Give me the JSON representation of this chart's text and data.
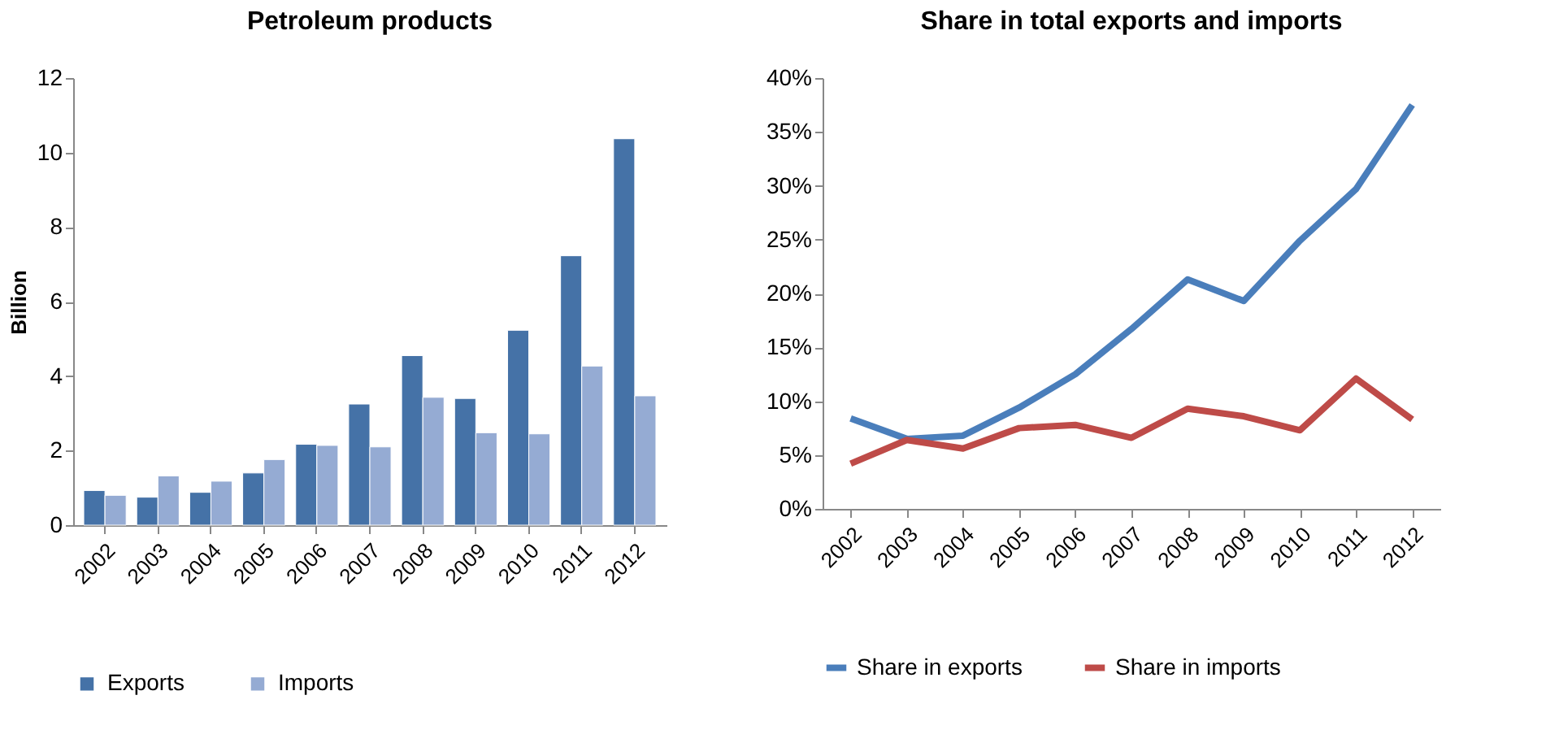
{
  "chart_data": [
    {
      "type": "bar",
      "title": "Petroleum products",
      "ylabel": "Billion",
      "categories": [
        "2002",
        "2003",
        "2004",
        "2005",
        "2006",
        "2007",
        "2008",
        "2009",
        "2010",
        "2011",
        "2012"
      ],
      "series": [
        {
          "name": "Exports",
          "color": "#4572a7",
          "values": [
            0.93,
            0.75,
            0.88,
            1.4,
            2.17,
            3.25,
            4.55,
            3.4,
            5.23,
            7.23,
            10.37
          ]
        },
        {
          "name": "Imports",
          "color": "#95abd3",
          "values": [
            0.8,
            1.32,
            1.18,
            1.76,
            2.14,
            2.1,
            3.43,
            2.48,
            2.45,
            4.27,
            3.47
          ]
        }
      ],
      "ylim": [
        0,
        12
      ],
      "yticks": [
        0,
        2,
        4,
        6,
        8,
        10,
        12
      ],
      "grid": false,
      "legend": "bottom"
    },
    {
      "type": "line",
      "title": "Share in total exports and imports",
      "categories": [
        "2002",
        "2003",
        "2004",
        "2005",
        "2006",
        "2007",
        "2008",
        "2009",
        "2010",
        "2011",
        "2012"
      ],
      "series": [
        {
          "name": "Share in exports",
          "color": "#4a7ebb",
          "values": [
            8.4,
            6.5,
            6.8,
            9.4,
            12.5,
            16.7,
            21.3,
            19.3,
            24.9,
            29.7,
            37.5
          ]
        },
        {
          "name": "Share in imports",
          "color": "#be4b48",
          "values": [
            4.2,
            6.4,
            5.6,
            7.5,
            7.8,
            6.6,
            9.3,
            8.6,
            7.3,
            12.1,
            8.3
          ]
        }
      ],
      "ylim": [
        0,
        40
      ],
      "yticks": [
        {
          "value": 0,
          "label": "0%"
        },
        {
          "value": 5,
          "label": "5%"
        },
        {
          "value": 10,
          "label": "10%"
        },
        {
          "value": 15,
          "label": "15%"
        },
        {
          "value": 20,
          "label": "20%"
        },
        {
          "value": 25,
          "label": "25%"
        },
        {
          "value": 30,
          "label": "30%"
        },
        {
          "value": 35,
          "label": "35%"
        },
        {
          "value": 40,
          "label": "40%"
        }
      ],
      "grid": false,
      "legend": "bottom",
      "marker": "none"
    }
  ]
}
